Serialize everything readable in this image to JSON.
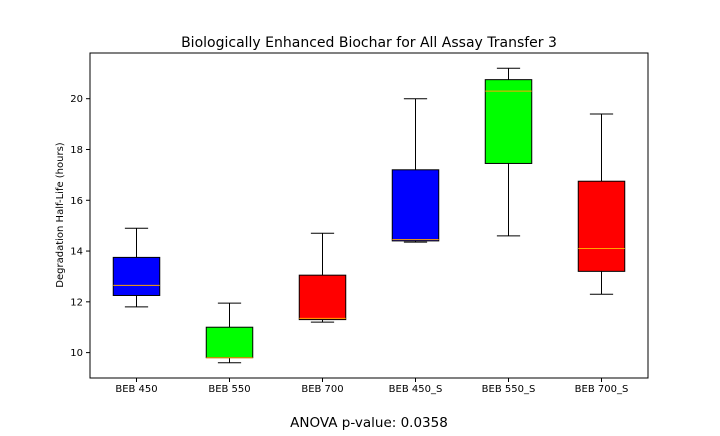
{
  "chart_data": {
    "type": "box",
    "title": "Biologically Enhanced Biochar for All Assay Transfer 3",
    "xlabel": "",
    "ylabel": "Degradation Half-Life (hours)",
    "ylim": [
      9.0,
      21.8
    ],
    "yticks": [
      10,
      12,
      14,
      16,
      18,
      20
    ],
    "categories": [
      "BEB 450",
      "BEB 550",
      "BEB 700",
      "BEB 450_S",
      "BEB 550_S",
      "BEB 700_S"
    ],
    "boxes": [
      {
        "category": "BEB 450",
        "whisker_low": 11.8,
        "q1": 12.25,
        "median": 12.65,
        "q3": 13.75,
        "whisker_high": 14.9,
        "color": "#0000ff"
      },
      {
        "category": "BEB 550",
        "whisker_low": 9.6,
        "q1": 9.8,
        "median": 9.8,
        "q3": 11.0,
        "whisker_high": 11.95,
        "color": "#00ff00"
      },
      {
        "category": "BEB 700",
        "whisker_low": 11.2,
        "q1": 11.3,
        "median": 11.35,
        "q3": 13.05,
        "whisker_high": 14.7,
        "color": "#ff0000"
      },
      {
        "category": "BEB 450_S",
        "whisker_low": 14.35,
        "q1": 14.4,
        "median": 14.45,
        "q3": 17.2,
        "whisker_high": 20.0,
        "color": "#0000ff"
      },
      {
        "category": "BEB 550_S",
        "whisker_low": 14.6,
        "q1": 17.45,
        "median": 20.3,
        "q3": 20.75,
        "whisker_high": 21.2,
        "color": "#00ff00"
      },
      {
        "category": "BEB 700_S",
        "whisker_low": 12.3,
        "q1": 13.2,
        "median": 14.1,
        "q3": 16.75,
        "whisker_high": 19.4,
        "color": "#ff0000"
      }
    ],
    "median_color": "#ffa500",
    "grid": false,
    "legend": "none"
  },
  "annotation": {
    "anova_text": "ANOVA p-value: 0.0358"
  }
}
